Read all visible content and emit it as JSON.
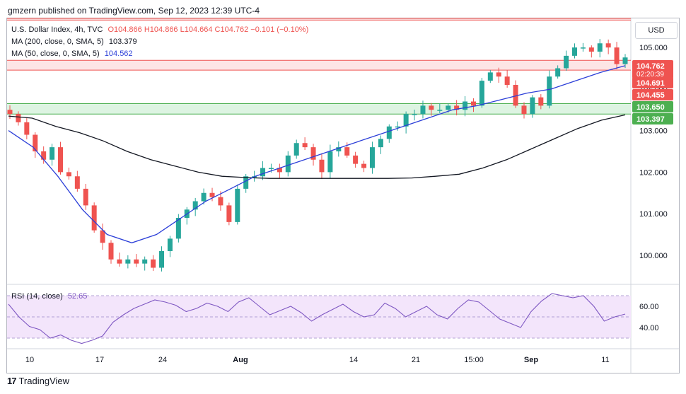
{
  "header": {
    "published": "gmzern published on TradingView.com, Sep 12, 2023 12:39 UTC-4"
  },
  "legend": {
    "main_prefix": "U.S. Dollar Index, 4h, TVC",
    "ohlc": "O104.866 H104.866 L104.664 C104.762 −0.101 (−0.10%)",
    "ma200_label": "MA (200, close, 0, SMA, 5)",
    "ma200_value": "103.379",
    "ma50_label": "MA (50, close, 0, SMA, 5)",
    "ma50_value": "104.562",
    "rsi_label": "RSI (14, close)",
    "rsi_value": "52.65"
  },
  "currency_button": "USD",
  "footer": {
    "brand": "TradingView",
    "logo": "17"
  },
  "colors": {
    "up": "#26a69a",
    "down": "#ef5350",
    "ma50": "#2c3fd8",
    "ma200": "#131722",
    "rsi": "#7e57c2",
    "rsi_band": "#f3e5fb",
    "red_zone": "#fde2e2",
    "green_zone": "#d9f3df"
  },
  "chart_data": {
    "type": "candlestick",
    "price_axis": {
      "ticks": [
        100,
        101,
        102,
        103,
        104,
        105
      ],
      "tick_labels": [
        "100.000",
        "101.000",
        "102.000",
        "103.000",
        "104.000",
        "105.000"
      ],
      "range": [
        99.3,
        105.7
      ]
    },
    "time_axis": [
      "10",
      "17",
      "24",
      "Aug",
      "14",
      "21",
      "15:00",
      "Sep",
      "11"
    ],
    "price_labels": [
      {
        "text": "104.762",
        "sub": "02:20:39",
        "value": 104.762,
        "color": "#ef5350"
      },
      {
        "text": "104.691",
        "value": 104.691,
        "color": "#ef5350"
      },
      {
        "text": "104.455",
        "value": 104.455,
        "color": "#ef5350"
      },
      {
        "text": "103.650",
        "value": 103.65,
        "color": "#4caf50"
      },
      {
        "text": "103.397",
        "value": 103.397,
        "color": "#4caf50"
      }
    ],
    "zones": [
      {
        "name": "top-resistance",
        "from": 105.66,
        "to": 105.7,
        "color": "#ef5350"
      },
      {
        "name": "resistance",
        "from": 104.455,
        "to": 104.691,
        "color": "#ef5350"
      },
      {
        "name": "support",
        "from": 103.397,
        "to": 103.65,
        "color": "#4caf50"
      }
    ],
    "closes": [
      103.4,
      103.2,
      102.9,
      102.5,
      102.3,
      102.6,
      102.0,
      101.9,
      101.6,
      101.2,
      100.6,
      100.3,
      99.9,
      99.8,
      99.9,
      99.8,
      99.9,
      99.7,
      100.1,
      100.4,
      100.9,
      101.1,
      101.3,
      101.5,
      101.4,
      101.2,
      100.8,
      101.6,
      101.9,
      101.9,
      102.1,
      102.1,
      102.0,
      102.4,
      102.7,
      102.6,
      102.3,
      102.0,
      102.5,
      102.6,
      102.4,
      102.2,
      102.1,
      102.6,
      102.8,
      103.1,
      103.1,
      103.4,
      103.4,
      103.6,
      103.5,
      103.5,
      103.6,
      103.5,
      103.7,
      103.6,
      104.2,
      104.4,
      104.3,
      104.1,
      103.6,
      103.4,
      103.8,
      103.6,
      104.3,
      104.5,
      104.8,
      105.0,
      105.0,
      104.9,
      105.1,
      105.0,
      104.6,
      104.76
    ],
    "ma200_values": [
      103.35,
      103.3,
      103.1,
      102.95,
      102.75,
      102.5,
      102.3,
      102.15,
      102.0,
      101.9,
      101.87,
      101.85,
      101.85,
      101.85,
      101.85,
      101.85,
      101.85,
      101.86,
      101.9,
      101.95,
      102.1,
      102.3,
      102.55,
      102.8,
      103.05,
      103.25,
      103.379
    ],
    "ma50_values": [
      103.0,
      102.6,
      101.9,
      101.1,
      100.5,
      100.3,
      100.5,
      100.9,
      101.3,
      101.6,
      101.9,
      102.1,
      102.3,
      102.5,
      102.7,
      102.9,
      103.1,
      103.3,
      103.5,
      103.6,
      103.75,
      103.9,
      104.0,
      104.2,
      104.4,
      104.562
    ],
    "rsi": {
      "ticks": [
        40,
        60
      ],
      "tick_labels": [
        "40.00",
        "60.00"
      ],
      "band": [
        30,
        70
      ],
      "range": [
        20,
        80
      ],
      "values": [
        62,
        50,
        41,
        38,
        30,
        33,
        28,
        25,
        28,
        32,
        45,
        52,
        58,
        62,
        66,
        64,
        61,
        55,
        58,
        63,
        60,
        55,
        64,
        68,
        60,
        52,
        56,
        60,
        54,
        46,
        52,
        57,
        62,
        55,
        50,
        52,
        63,
        58,
        50,
        55,
        60,
        52,
        48,
        58,
        66,
        64,
        56,
        48,
        44,
        40,
        55,
        65,
        72,
        70,
        68,
        70,
        60,
        46,
        50,
        52.65
      ]
    }
  }
}
